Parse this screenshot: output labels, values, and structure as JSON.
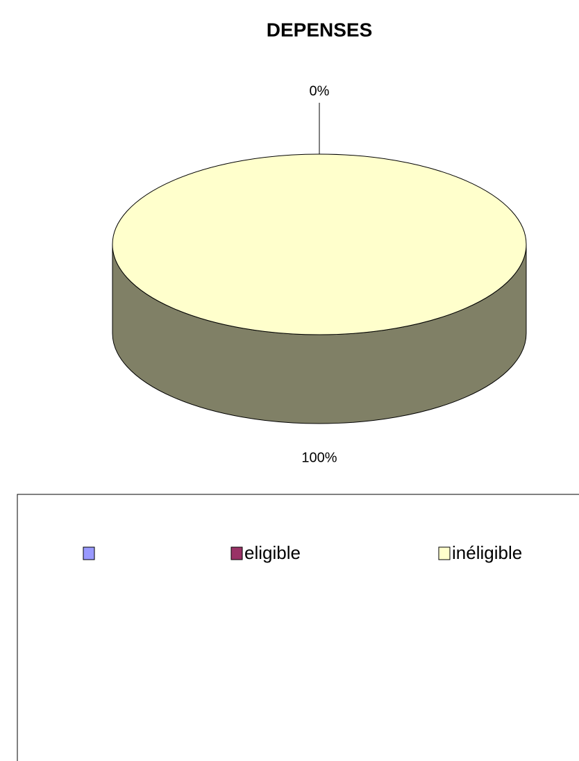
{
  "chart_data": {
    "type": "pie",
    "title": "DEPENSES",
    "categories": [
      null,
      "eligible",
      "inéligible"
    ],
    "values": [
      0,
      0,
      100
    ],
    "value_labels": [
      null,
      "0%",
      "100%"
    ],
    "colors": [
      "#9999ff",
      "#993366",
      "#ffffcc"
    ],
    "legend": "bottom"
  }
}
